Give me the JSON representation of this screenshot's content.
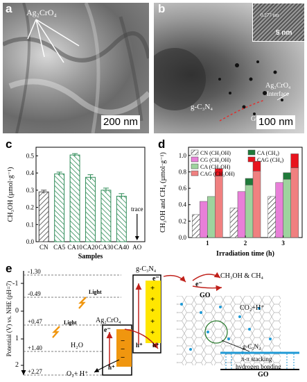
{
  "panel_a": {
    "letter": "a",
    "label": "Ag₂CrO₄",
    "scale": "200 nm"
  },
  "panel_b": {
    "letter": "b",
    "inset_scale": "5 nm",
    "inset_spacing": "0.277 nm",
    "label_ag": "Ag₂CrO₄",
    "label_interface": "Interface",
    "label_gcn": "g-C₃N₄",
    "label_go": "GO",
    "scale": "100 nm"
  },
  "panel_c": {
    "letter": "c",
    "trace_label": "trace"
  },
  "panel_d": {
    "letter": "d",
    "legend": [
      {
        "name": "CN (CH₃OH)"
      },
      {
        "name": "CG (CH₃OH)"
      },
      {
        "name": "CA (CH₃OH)"
      },
      {
        "name": "CAG (CH₃OH)"
      },
      {
        "name": "CA (CH₄)"
      },
      {
        "name": "CAG (CH₄)"
      }
    ]
  },
  "panel_e": {
    "letter": "e",
    "ylabel": "Potential (V) vs. NHE (pH=7)",
    "ticks": [
      "-1.30",
      "-0.49",
      "+0.47",
      "+1.40",
      "+2.27"
    ],
    "axis_numbers": [
      "-1",
      "0",
      "1",
      "2"
    ],
    "gcn_label": "g-C₃N₄",
    "ag_label": "Ag₂CrO₄",
    "light1": "Light",
    "light2": "Light",
    "electron": "e⁻",
    "hole": "h⁺",
    "h2o": "H₂O",
    "o2": "O₂+ H⁺",
    "products": "CH₃OH & CH₄",
    "co2": "CO₂+H⁺",
    "go1": "GO",
    "go2": "GO",
    "gcn_layer": "g-C₃N₄",
    "pi_stacking": "π-π stacking",
    "hbond": "hydrogen bonding"
  },
  "chart_data": [
    {
      "type": "bar",
      "categories": [
        "CN",
        "CA5",
        "CA10",
        "CA20",
        "CA30",
        "CA40",
        "AO"
      ],
      "values": [
        0.29,
        0.395,
        0.505,
        0.375,
        0.3,
        0.265,
        0
      ],
      "errors": [
        0.01,
        0.01,
        0.008,
        0.015,
        0.012,
        0.015,
        0
      ],
      "xlabel": "Samples",
      "ylabel": "CH₃OH (µmol·g⁻¹)",
      "ylim": [
        0,
        0.55
      ],
      "yticks": [
        "0.0",
        "0.1",
        "0.2",
        "0.3",
        "0.4",
        "0.5"
      ],
      "annotation": "trace",
      "colors": {
        "CN": "#555555",
        "others": "#2e8b57"
      }
    },
    {
      "type": "bar",
      "categories": [
        "1",
        "2",
        "3"
      ],
      "xlabel": "Irradiation time (h)",
      "ylabel": "CH₃OH and CH₄ (µmol·g⁻¹)",
      "ylim": [
        0,
        1.1
      ],
      "yticks": [
        "0.0",
        "0.2",
        "0.4",
        "0.6",
        "0.8",
        "1.0"
      ],
      "series": [
        {
          "name": "CN (CH₃OH)",
          "values": [
            0.28,
            0.36,
            0.5
          ],
          "color": "#888888"
        },
        {
          "name": "CG (CH₃OH)",
          "values": [
            0.44,
            0.56,
            0.67
          ],
          "color": "#e87fd8"
        },
        {
          "name": "CA (CH₃OH)",
          "values": [
            0.5,
            0.64,
            0.71
          ],
          "color": "#9ed39e"
        },
        {
          "name": "CA (CH₄)",
          "values": [
            0.0,
            0.08,
            0.08
          ],
          "color": "#1f7a3a"
        },
        {
          "name": "CAG (CH₃OH)",
          "values": [
            0.75,
            0.81,
            0.85
          ],
          "color": "#f08080"
        },
        {
          "name": "CAG (CH₄)",
          "values": [
            0.09,
            0.12,
            0.17
          ],
          "color": "#e8141e"
        }
      ],
      "legend_position": "top-left"
    }
  ]
}
